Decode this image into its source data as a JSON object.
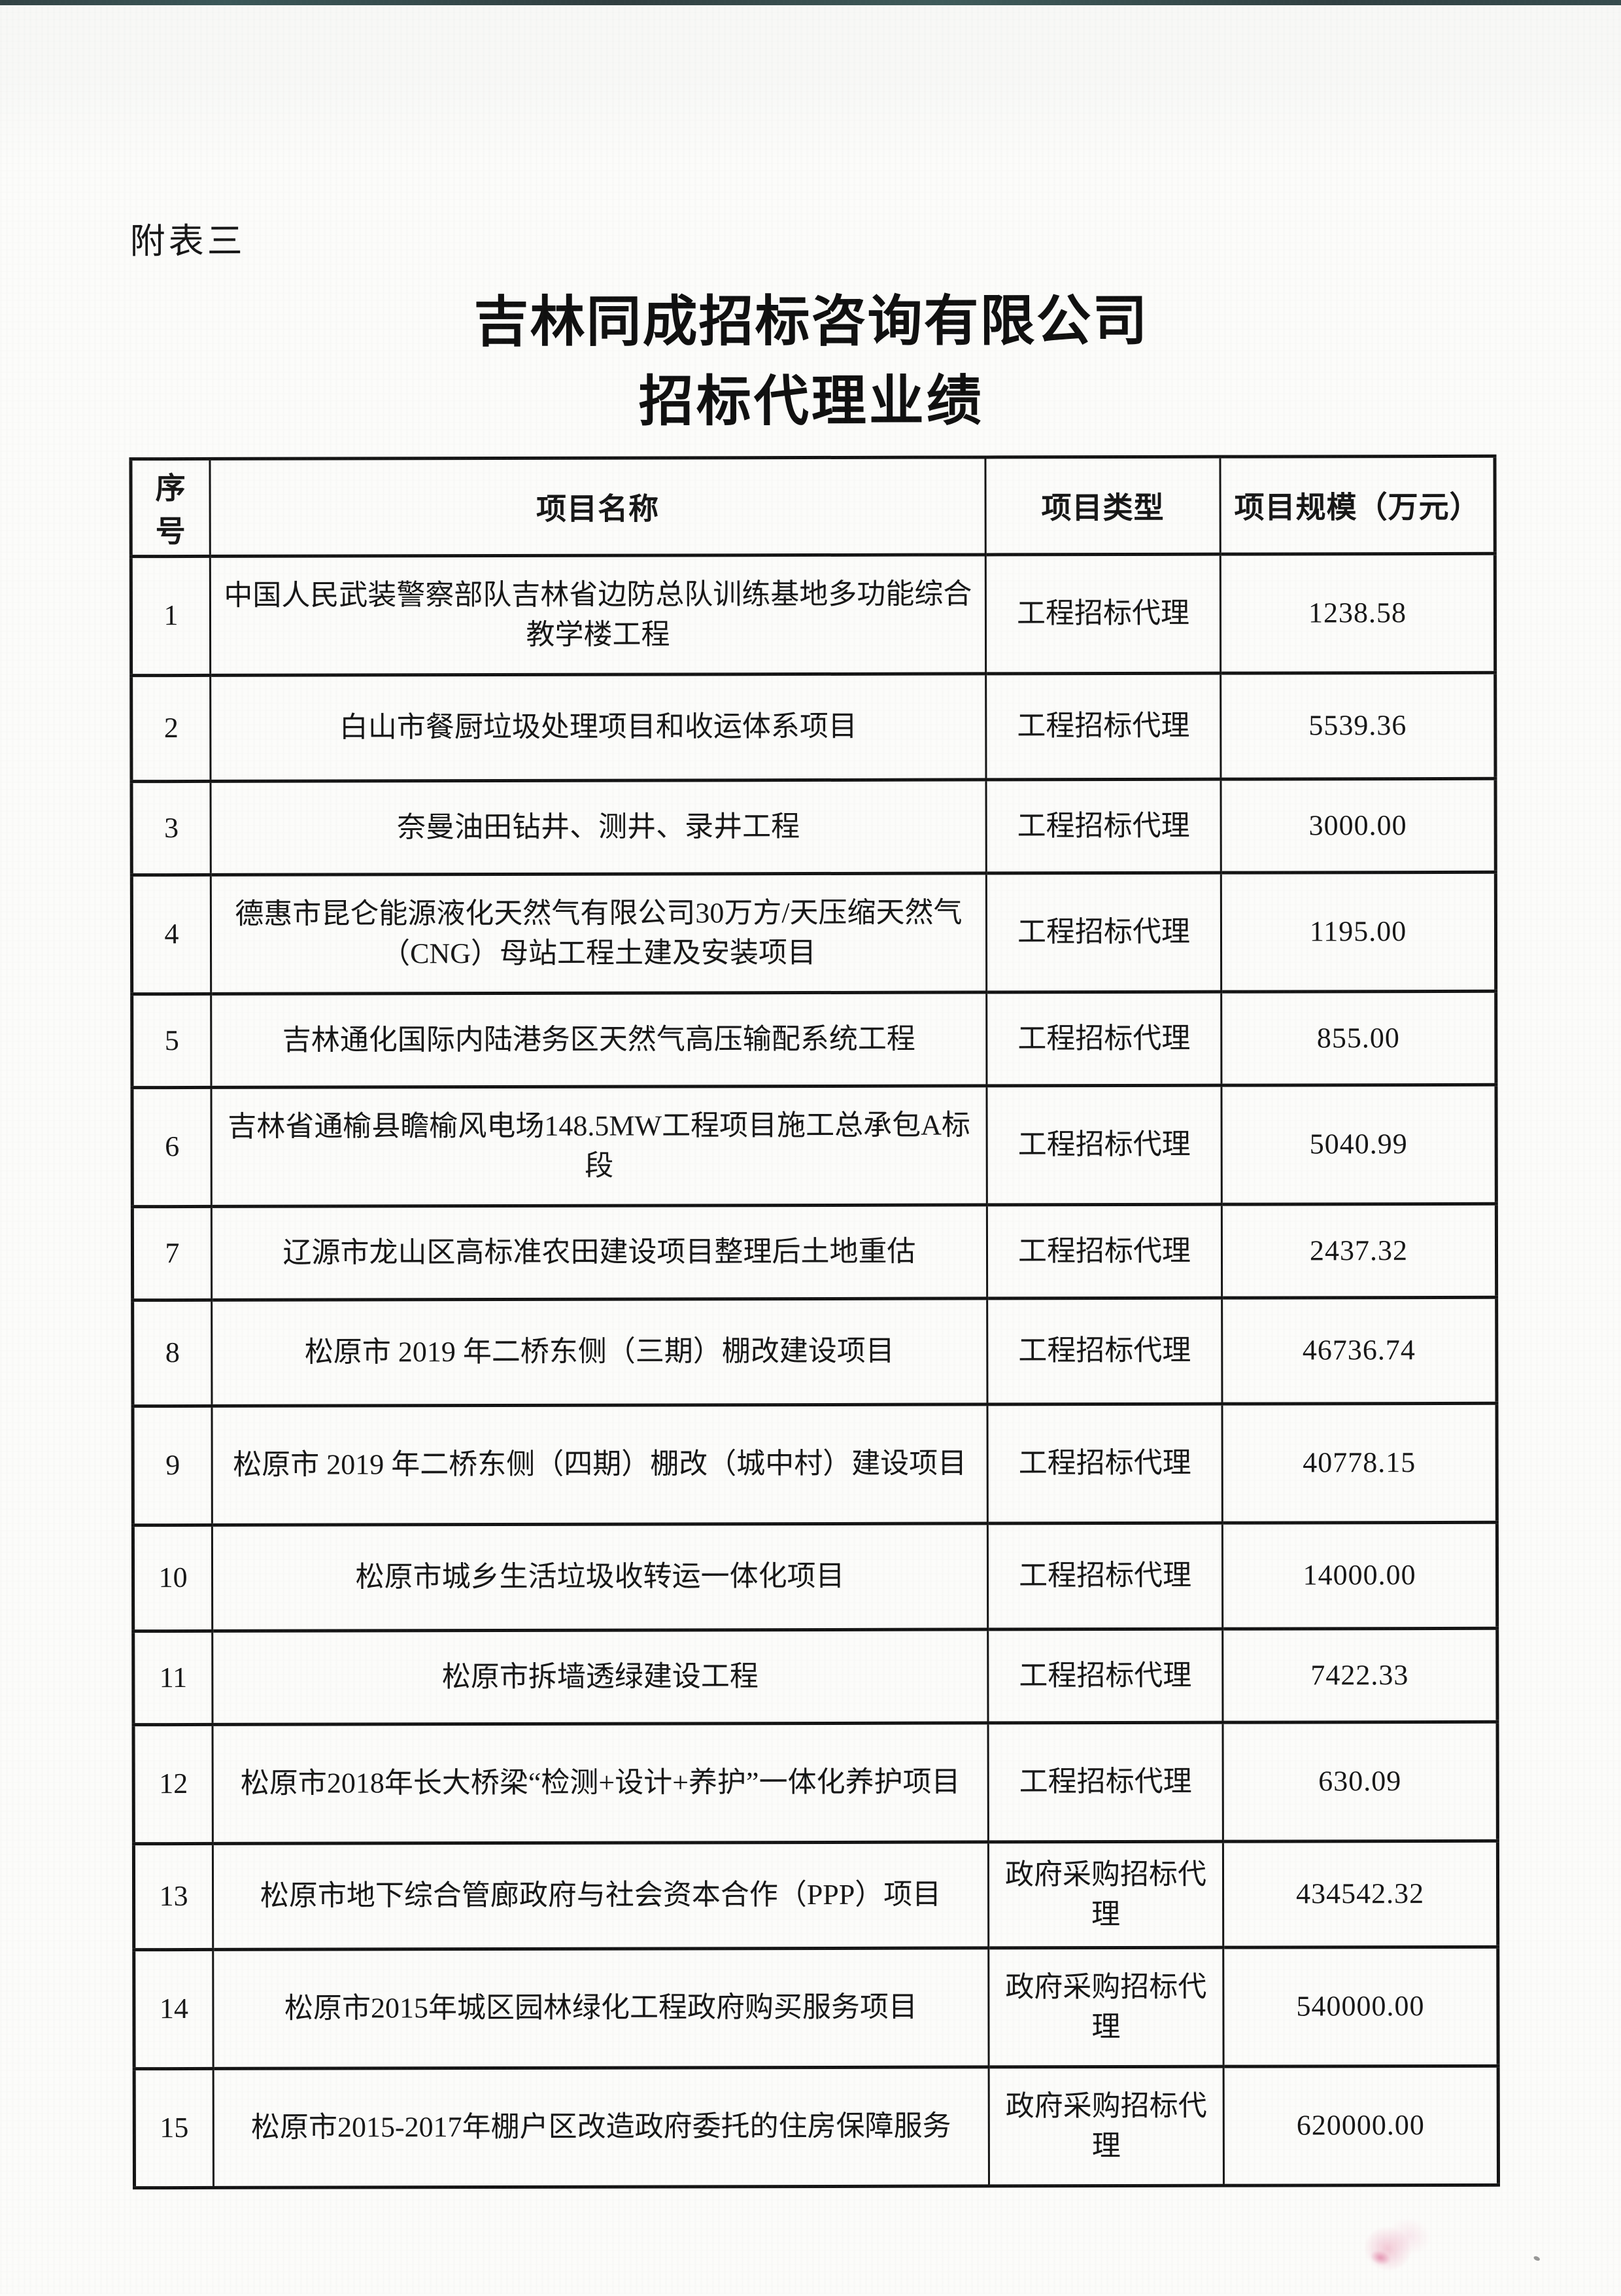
{
  "page": {
    "corner_label": "附表三",
    "title_line1": "吉林同成招标咨询有限公司",
    "title_line2": "招标代理业绩"
  },
  "table": {
    "headers": {
      "no": "序号",
      "name": "项目名称",
      "type": "项目类型",
      "scale": "项目规模（万元）"
    },
    "rows": [
      {
        "no": "1",
        "name": "中国人民武装警察部队吉林省边防总队训练基地多功能综合教学楼工程",
        "type": "工程招标代理",
        "scale": "1238.58"
      },
      {
        "no": "2",
        "name": "白山市餐厨垃圾处理项目和收运体系项目",
        "type": "工程招标代理",
        "scale": "5539.36"
      },
      {
        "no": "3",
        "name": "奈曼油田钻井、测井、录井工程",
        "type": "工程招标代理",
        "scale": "3000.00"
      },
      {
        "no": "4",
        "name": "德惠市昆仑能源液化天然气有限公司30万方/天压缩天然气（CNG）母站工程土建及安装项目",
        "type": "工程招标代理",
        "scale": "1195.00"
      },
      {
        "no": "5",
        "name": "吉林通化国际内陆港务区天然气高压输配系统工程",
        "type": "工程招标代理",
        "scale": "855.00"
      },
      {
        "no": "6",
        "name": "吉林省通榆县瞻榆风电场148.5MW工程项目施工总承包A标段",
        "type": "工程招标代理",
        "scale": "5040.99"
      },
      {
        "no": "7",
        "name": "辽源市龙山区高标准农田建设项目整理后土地重估",
        "type": "工程招标代理",
        "scale": "2437.32"
      },
      {
        "no": "8",
        "name": "松原市 2019 年二桥东侧（三期）棚改建设项目",
        "type": "工程招标代理",
        "scale": "46736.74"
      },
      {
        "no": "9",
        "name": "松原市 2019 年二桥东侧（四期）棚改（城中村）建设项目",
        "type": "工程招标代理",
        "scale": "40778.15"
      },
      {
        "no": "10",
        "name": "松原市城乡生活垃圾收转运一体化项目",
        "type": "工程招标代理",
        "scale": "14000.00"
      },
      {
        "no": "11",
        "name": "松原市拆墙透绿建设工程",
        "type": "工程招标代理",
        "scale": "7422.33"
      },
      {
        "no": "12",
        "name": "松原市2018年长大桥梁“检测+设计+养护”一体化养护项目",
        "type": "工程招标代理",
        "scale": "630.09"
      },
      {
        "no": "13",
        "name": "松原市地下综合管廊政府与社会资本合作（PPP）项目",
        "type": "政府采购招标代理",
        "scale": "434542.32"
      },
      {
        "no": "14",
        "name": "松原市2015年城区园林绿化工程政府购买服务项目",
        "type": "政府采购招标代理",
        "scale": "540000.00"
      },
      {
        "no": "15",
        "name": "松原市2015-2017年棚户区改造政府委托的住房保障服务",
        "type": "政府采购招标代理",
        "scale": "620000.00"
      }
    ]
  }
}
